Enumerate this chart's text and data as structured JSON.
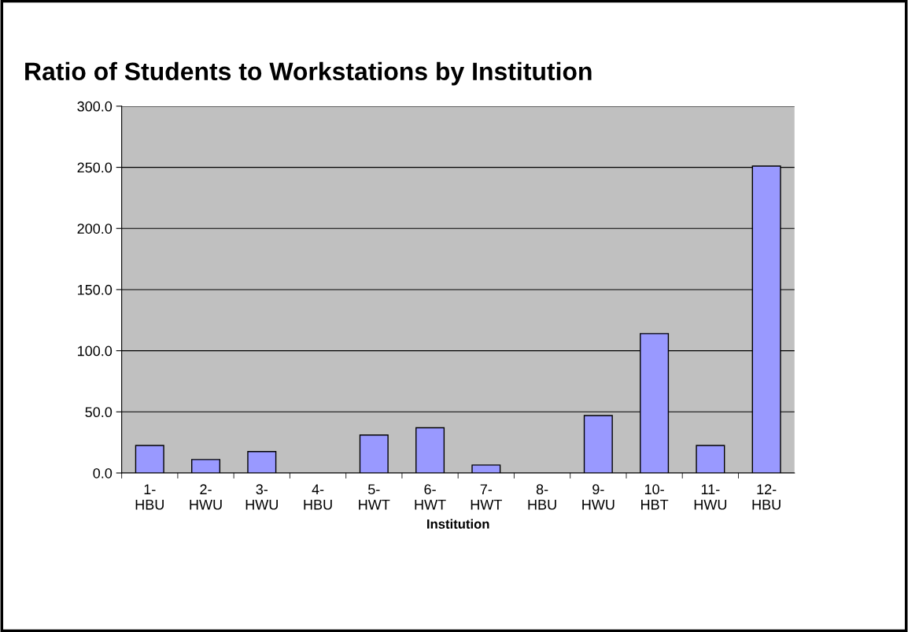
{
  "chart_data": {
    "type": "bar",
    "title": "Ratio of Students to Workstations by Institution",
    "xlabel": "Institution",
    "categories": [
      "1-\nHBU",
      "2-\nHWU",
      "3-\nHWU",
      "4-\nHBU",
      "5-\nHWT",
      "6-\nHWT",
      "7-\nHWT",
      "8-\nHBU",
      "9-\nHWU",
      "10-\nHBT",
      "11-\nHWU",
      "12-\nHBU"
    ],
    "values": [
      22.5,
      11,
      17.5,
      0,
      31,
      37,
      6.5,
      0,
      47,
      114,
      22.5,
      251
    ],
    "color": "#9999ff",
    "ylim": [
      0,
      300
    ],
    "yticks": [
      {
        "value": 0,
        "label": "0.0"
      },
      {
        "value": 50,
        "label": "50.0"
      },
      {
        "value": 100,
        "label": "100.0"
      },
      {
        "value": 150,
        "label": "150.0"
      },
      {
        "value": 200,
        "label": "200.0"
      },
      {
        "value": 250,
        "label": "250.0"
      },
      {
        "value": 300,
        "label": "300.0"
      }
    ],
    "grid": "y"
  }
}
